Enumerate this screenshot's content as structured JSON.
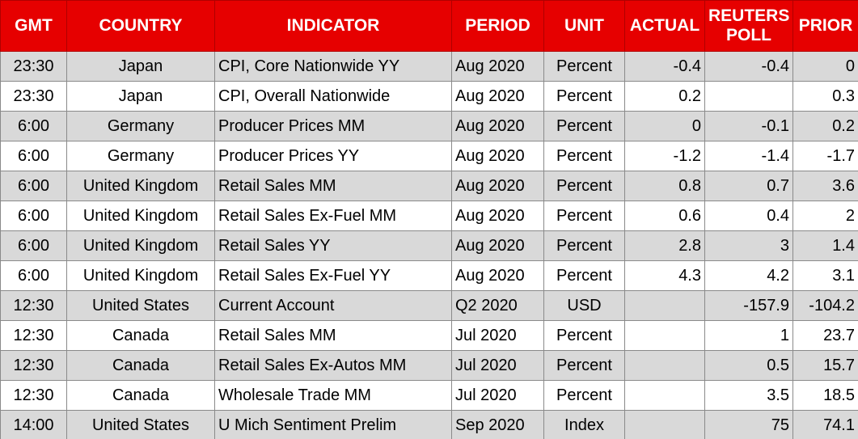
{
  "table": {
    "header": [
      "GMT",
      "COUNTRY",
      "INDICATOR",
      "PERIOD",
      "UNIT",
      "ACTUAL",
      "REUTERS POLL",
      "PRIOR"
    ],
    "rows": [
      [
        "23:30",
        "Japan",
        "CPI, Core Nationwide YY",
        "Aug 2020",
        "Percent",
        "-0.4",
        "-0.4",
        "0"
      ],
      [
        "23:30",
        "Japan",
        "CPI, Overall Nationwide",
        "Aug 2020",
        "Percent",
        "0.2",
        null,
        "0.3"
      ],
      [
        "6:00",
        "Germany",
        "Producer Prices MM",
        "Aug 2020",
        "Percent",
        "0",
        "-0.1",
        "0.2"
      ],
      [
        "6:00",
        "Germany",
        "Producer Prices YY",
        "Aug 2020",
        "Percent",
        "-1.2",
        "-1.4",
        "-1.7"
      ],
      [
        "6:00",
        "United Kingdom",
        "Retail Sales MM",
        "Aug 2020",
        "Percent",
        "0.8",
        "0.7",
        "3.6"
      ],
      [
        "6:00",
        "United Kingdom",
        "Retail Sales Ex-Fuel MM",
        "Aug 2020",
        "Percent",
        "0.6",
        "0.4",
        "2"
      ],
      [
        "6:00",
        "United Kingdom",
        "Retail Sales YY",
        "Aug 2020",
        "Percent",
        "2.8",
        "3",
        "1.4"
      ],
      [
        "6:00",
        "United Kingdom",
        "Retail Sales Ex-Fuel YY",
        "Aug 2020",
        "Percent",
        "4.3",
        "4.2",
        "3.1"
      ],
      [
        "12:30",
        "United States",
        "Current Account",
        "Q2 2020",
        "USD",
        null,
        "-157.9",
        "-104.2"
      ],
      [
        "12:30",
        "Canada",
        "Retail Sales MM",
        "Jul 2020",
        "Percent",
        null,
        "1",
        "23.7"
      ],
      [
        "12:30",
        "Canada",
        "Retail Sales Ex-Autos MM",
        "Jul 2020",
        "Percent",
        null,
        "0.5",
        "15.7"
      ],
      [
        "12:30",
        "Canada",
        "Wholesale Trade MM",
        "Jul 2020",
        "Percent",
        null,
        "3.5",
        "18.5"
      ],
      [
        "14:00",
        "United States",
        "U Mich Sentiment Prelim",
        "Sep 2020",
        "Index",
        null,
        "75",
        "74.1"
      ]
    ]
  }
}
